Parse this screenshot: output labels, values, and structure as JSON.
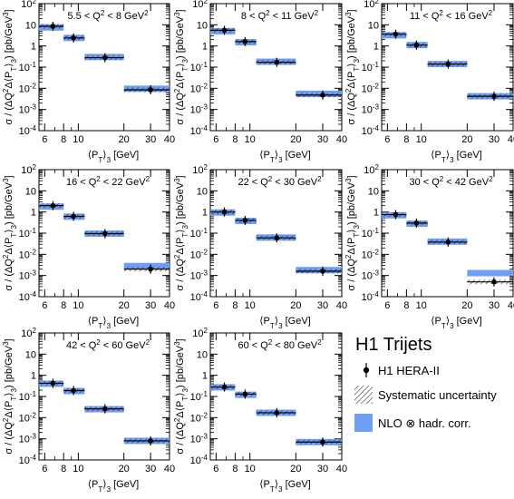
{
  "colors": {
    "nlo_band": "#6f9ef5",
    "axis": "#000000",
    "hatch": "#333333",
    "point": "#000000"
  },
  "legend": {
    "title": "H1 Trijets",
    "entries": [
      {
        "label": "H1 HERA-II",
        "icon": "data-point-icon"
      },
      {
        "label": "Systematic uncertainty",
        "icon": "hatched-box-icon"
      },
      {
        "label": "NLO ⊗ hadr. corr.",
        "icon": "blue-box-icon"
      }
    ]
  },
  "chart_data": [
    {
      "type": "scatter",
      "title": "5.5 < Q² < 8 GeV²",
      "xlabel": "⟨PT⟩3 [GeV]",
      "ylabel": "σ / (ΔQ²Δ⟨PT⟩3) [pb/GeV³]",
      "x_scale": "log",
      "y_scale": "log",
      "xlim": [
        5.5,
        40
      ],
      "ylim": [
        0.0001,
        100
      ],
      "xticks": [
        6,
        8,
        10,
        20,
        30,
        40
      ],
      "yticks": [
        0.0001,
        0.001,
        0.01,
        0.1,
        1,
        10,
        100
      ],
      "bins": [
        [
          5.5,
          8
        ],
        [
          8,
          11
        ],
        [
          11,
          20
        ],
        [
          20,
          40
        ]
      ],
      "x": [
        6.8,
        9.3,
        15,
        30
      ],
      "y": [
        8.5,
        2.4,
        0.28,
        0.0085
      ],
      "nlo": [
        7.5,
        2.4,
        0.3,
        0.0095
      ]
    },
    {
      "type": "scatter",
      "title": "8 < Q² < 11 GeV²",
      "xlabel": "⟨PT⟩3 [GeV]",
      "ylabel": "",
      "x_scale": "log",
      "y_scale": "log",
      "xlim": [
        5.5,
        40
      ],
      "ylim": [
        0.0001,
        100
      ],
      "xticks": [
        6,
        8,
        10,
        20,
        30,
        40
      ],
      "yticks": [
        0.0001,
        0.001,
        0.01,
        0.1,
        1,
        10,
        100
      ],
      "bins": [
        [
          5.5,
          8
        ],
        [
          8,
          11
        ],
        [
          11,
          20
        ],
        [
          20,
          40
        ]
      ],
      "x": [
        6.8,
        9.3,
        15,
        30
      ],
      "y": [
        5.5,
        1.6,
        0.17,
        0.0048
      ],
      "nlo": [
        5.0,
        1.5,
        0.18,
        0.0055
      ]
    },
    {
      "type": "scatter",
      "title": "11 < Q² < 16 GeV²",
      "xlabel": "⟨PT⟩3 [GeV]",
      "ylabel": "",
      "x_scale": "log",
      "y_scale": "log",
      "xlim": [
        5.5,
        40
      ],
      "ylim": [
        0.0001,
        100
      ],
      "xticks": [
        6,
        8,
        10,
        20,
        30,
        40
      ],
      "yticks": [
        0.0001,
        0.001,
        0.01,
        0.1,
        1,
        10,
        100
      ],
      "bins": [
        [
          5.5,
          8
        ],
        [
          8,
          11
        ],
        [
          11,
          20
        ],
        [
          20,
          40
        ]
      ],
      "x": [
        6.8,
        9.3,
        15,
        30
      ],
      "y": [
        3.6,
        1.1,
        0.14,
        0.0042
      ],
      "nlo": [
        3.2,
        1.1,
        0.14,
        0.0042
      ]
    },
    {
      "type": "scatter",
      "title": "16 < Q² < 22 GeV²",
      "xlabel": "⟨PT⟩3 [GeV]",
      "ylabel": "σ / (ΔQ²Δ⟨PT⟩3) [pb/GeV³]",
      "x_scale": "log",
      "y_scale": "log",
      "xlim": [
        5.5,
        40
      ],
      "ylim": [
        0.0001,
        100
      ],
      "xticks": [
        6,
        8,
        10,
        20,
        30,
        40
      ],
      "yticks": [
        0.0001,
        0.001,
        0.01,
        0.1,
        1,
        10,
        100
      ],
      "bins": [
        [
          5.5,
          8
        ],
        [
          8,
          11
        ],
        [
          11,
          20
        ],
        [
          20,
          40
        ]
      ],
      "x": [
        6.8,
        9.3,
        15,
        30
      ],
      "y": [
        2.0,
        0.62,
        0.095,
        0.002
      ],
      "nlo": [
        1.8,
        0.6,
        0.095,
        0.0028
      ]
    },
    {
      "type": "scatter",
      "title": "22 < Q² < 30 GeV²",
      "xlabel": "⟨PT⟩3 [GeV]",
      "ylabel": "",
      "x_scale": "log",
      "y_scale": "log",
      "xlim": [
        5.5,
        40
      ],
      "ylim": [
        0.0001,
        100
      ],
      "xticks": [
        6,
        8,
        10,
        20,
        30,
        40
      ],
      "yticks": [
        0.0001,
        0.001,
        0.01,
        0.1,
        1,
        10,
        100
      ],
      "bins": [
        [
          5.5,
          8
        ],
        [
          8,
          11
        ],
        [
          11,
          20
        ],
        [
          20,
          40
        ]
      ],
      "x": [
        6.8,
        9.3,
        15,
        30
      ],
      "y": [
        1.0,
        0.4,
        0.06,
        0.0016
      ],
      "nlo": [
        0.95,
        0.38,
        0.062,
        0.0018
      ]
    },
    {
      "type": "scatter",
      "title": "30 < Q² < 42 GeV²",
      "xlabel": "⟨PT⟩3 [GeV]",
      "ylabel": "",
      "x_scale": "log",
      "y_scale": "log",
      "xlim": [
        5.5,
        40
      ],
      "ylim": [
        0.0001,
        100
      ],
      "xticks": [
        6,
        8,
        10,
        20,
        30,
        40
      ],
      "yticks": [
        0.0001,
        0.001,
        0.01,
        0.1,
        1,
        10,
        100
      ],
      "bins": [
        [
          5.5,
          8
        ],
        [
          8,
          11
        ],
        [
          11,
          20
        ],
        [
          20,
          40
        ]
      ],
      "x": [
        6.8,
        9.3,
        15,
        30
      ],
      "y": [
        0.75,
        0.3,
        0.038,
        0.0005
      ],
      "nlo": [
        0.7,
        0.28,
        0.04,
        0.0013
      ]
    },
    {
      "type": "scatter",
      "title": "42 < Q² < 60 GeV²",
      "xlabel": "⟨PT⟩3 [GeV]",
      "ylabel": "σ / (ΔQ²Δ⟨PT⟩3) [pb/GeV³]",
      "x_scale": "log",
      "y_scale": "log",
      "xlim": [
        5.5,
        40
      ],
      "ylim": [
        0.0001,
        100
      ],
      "xticks": [
        6,
        8,
        10,
        20,
        30,
        40
      ],
      "yticks": [
        0.0001,
        0.001,
        0.01,
        0.1,
        1,
        10,
        100
      ],
      "bins": [
        [
          5.5,
          8
        ],
        [
          8,
          11
        ],
        [
          11,
          20
        ],
        [
          20,
          40
        ]
      ],
      "x": [
        6.8,
        9.3,
        15,
        30
      ],
      "y": [
        0.42,
        0.19,
        0.026,
        0.0008
      ],
      "nlo": [
        0.4,
        0.18,
        0.025,
        0.0008
      ]
    },
    {
      "type": "scatter",
      "title": "60 < Q² < 80 GeV²",
      "xlabel": "⟨PT⟩3 [GeV]",
      "ylabel": "σ / (ΔQ²Δ⟨PT⟩3) [pb/GeV³]",
      "x_scale": "log",
      "y_scale": "log",
      "xlim": [
        5.5,
        40
      ],
      "ylim": [
        0.0001,
        100
      ],
      "xticks": [
        6,
        8,
        10,
        20,
        30,
        40
      ],
      "yticks": [
        0.0001,
        0.001,
        0.01,
        0.1,
        1,
        10,
        100
      ],
      "bins": [
        [
          5.5,
          8
        ],
        [
          8,
          11
        ],
        [
          11,
          20
        ],
        [
          20,
          40
        ]
      ],
      "x": [
        6.8,
        9.3,
        15,
        30
      ],
      "y": [
        0.28,
        0.13,
        0.017,
        0.0007
      ],
      "nlo": [
        0.27,
        0.12,
        0.017,
        0.0007
      ]
    }
  ]
}
